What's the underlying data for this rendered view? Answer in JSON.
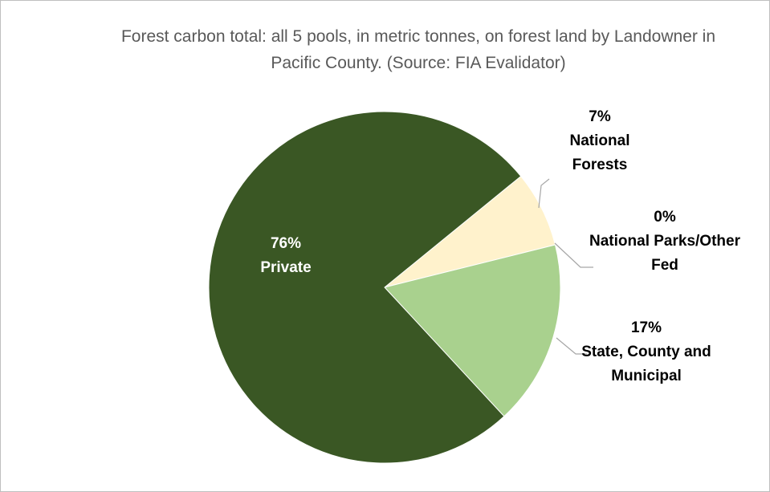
{
  "chart_data": {
    "type": "pie",
    "title": "Forest carbon total: all 5 pools, in metric tonnes, on forest land by Landowner in Pacific County. (Source: FIA Evalidator)",
    "categories": [
      "National Forests",
      "National Parks/Other Fed",
      "State, County and Municipal",
      "Private"
    ],
    "values": [
      7,
      0,
      17,
      76
    ],
    "value_labels": [
      "7%",
      "0%",
      "17%",
      "76%"
    ],
    "colors": [
      "#fff2cc",
      "#c5e0b4",
      "#a9d18e",
      "#3a5724"
    ]
  }
}
